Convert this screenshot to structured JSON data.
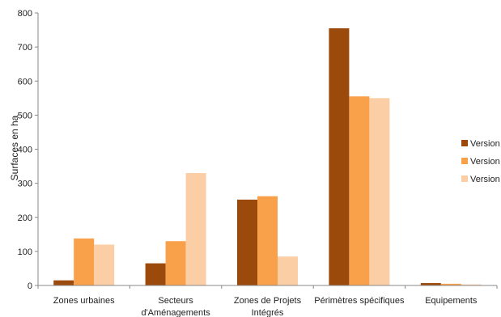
{
  "chart_data": {
    "type": "bar",
    "title": "",
    "xlabel": "",
    "ylabel": "Surfaces en ha",
    "ylim": [
      0,
      800
    ],
    "yticks": [
      0,
      100,
      200,
      300,
      400,
      500,
      600,
      700,
      800
    ],
    "grid": false,
    "legend_position": "right",
    "categories": [
      [
        "Zones urbaines"
      ],
      [
        "Secteurs",
        "d'Aménagements"
      ],
      [
        "Zones de Projets",
        "Intégrés"
      ],
      [
        "Périmètres spécifiques"
      ],
      [
        "Equipements"
      ]
    ],
    "series": [
      {
        "name": "Version",
        "color": "#9b4a0b",
        "values": [
          15,
          65,
          252,
          755,
          7
        ]
      },
      {
        "name": "Version",
        "color": "#f9a04a",
        "values": [
          138,
          130,
          262,
          555,
          5
        ]
      },
      {
        "name": "Version",
        "color": "#fbcea6",
        "values": [
          120,
          330,
          85,
          550,
          3
        ]
      }
    ]
  }
}
